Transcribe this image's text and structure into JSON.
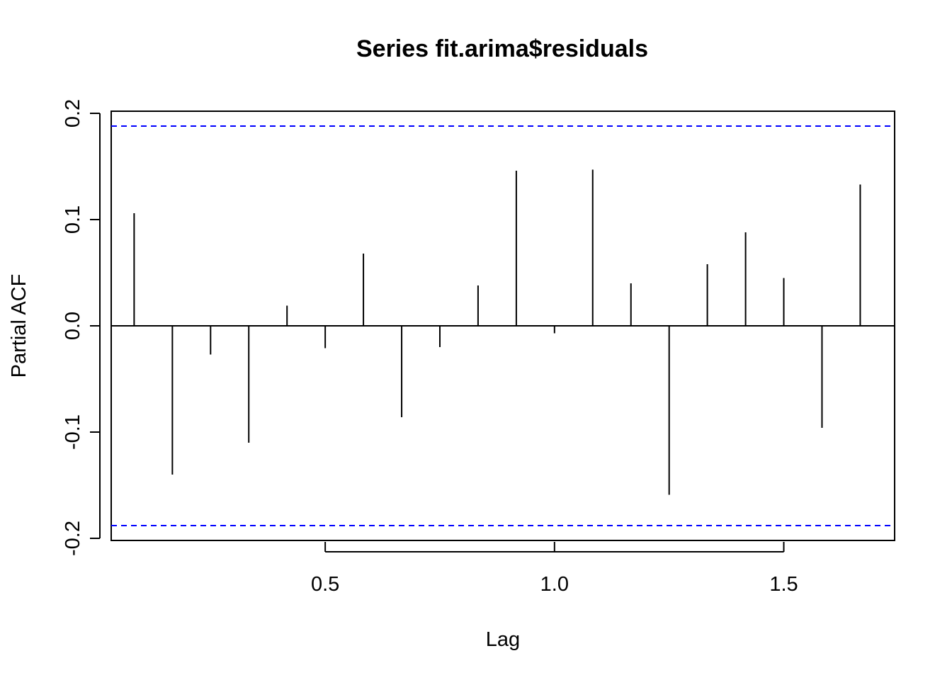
{
  "chart_data": {
    "type": "bar",
    "title": "Series  fit.arima$residuals",
    "xlabel": "Lag",
    "ylabel": "Partial ACF",
    "xlim": [
      0.0333,
      1.7417
    ],
    "ylim": [
      -0.202,
      0.202
    ],
    "x_ticks": [
      {
        "value": 0.5,
        "label": "0.5"
      },
      {
        "value": 1.0,
        "label": "1.0"
      },
      {
        "value": 1.5,
        "label": "1.5"
      }
    ],
    "y_ticks": [
      {
        "value": -0.2,
        "label": "-0.2"
      },
      {
        "value": -0.1,
        "label": "-0.1"
      },
      {
        "value": 0.0,
        "label": "0.0"
      },
      {
        "value": 0.1,
        "label": "0.1"
      },
      {
        "value": 0.2,
        "label": "0.2"
      }
    ],
    "confidence_bound": 0.188,
    "confidence_line_color": "#0000ff",
    "bar_color": "#000000",
    "grid": false,
    "lags": [
      0.0833,
      0.1667,
      0.25,
      0.3333,
      0.4167,
      0.5,
      0.5833,
      0.6667,
      0.75,
      0.8333,
      0.9167,
      1.0,
      1.0833,
      1.1667,
      1.25,
      1.3333,
      1.4167,
      1.5,
      1.5833,
      1.6667
    ],
    "values": [
      0.106,
      -0.14,
      -0.027,
      -0.11,
      0.019,
      -0.021,
      0.068,
      -0.086,
      -0.02,
      0.038,
      0.146,
      -0.007,
      0.147,
      0.04,
      -0.159,
      0.058,
      0.088,
      0.045,
      -0.096,
      0.133
    ]
  }
}
